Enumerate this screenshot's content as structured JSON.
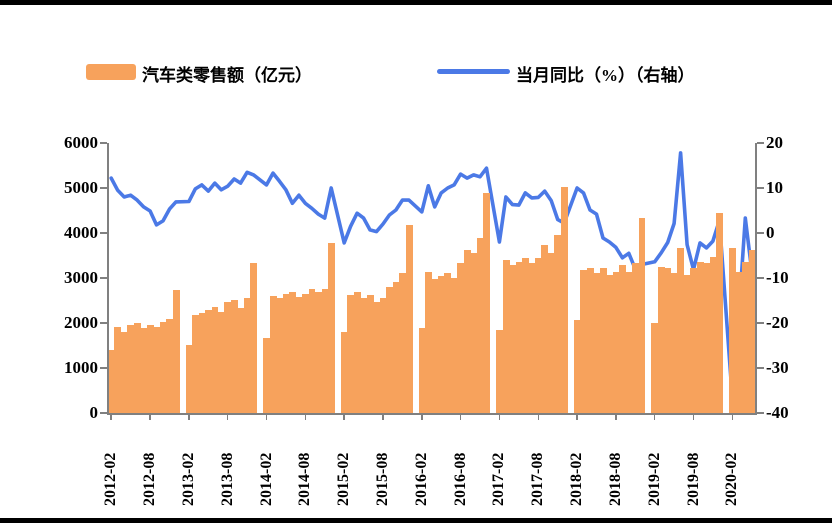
{
  "legend": {
    "bar_label": "汽车类零售额（亿元）",
    "line_label": "当月同比（%）（右轴）"
  },
  "chart_data": {
    "type": "bar+line",
    "title": "",
    "legend_position": "top",
    "grid": false,
    "months": [
      "2012-02",
      "2012-03",
      "2012-04",
      "2012-05",
      "2012-06",
      "2012-07",
      "2012-08",
      "2012-09",
      "2012-10",
      "2012-11",
      "2012-12",
      "2013-01",
      "2013-02",
      "2013-03",
      "2013-04",
      "2013-05",
      "2013-06",
      "2013-07",
      "2013-08",
      "2013-09",
      "2013-10",
      "2013-11",
      "2013-12",
      "2014-01",
      "2014-02",
      "2014-03",
      "2014-04",
      "2014-05",
      "2014-06",
      "2014-07",
      "2014-08",
      "2014-09",
      "2014-10",
      "2014-11",
      "2014-12",
      "2015-01",
      "2015-02",
      "2015-03",
      "2015-04",
      "2015-05",
      "2015-06",
      "2015-07",
      "2015-08",
      "2015-09",
      "2015-10",
      "2015-11",
      "2015-12",
      "2016-01",
      "2016-02",
      "2016-03",
      "2016-04",
      "2016-05",
      "2016-06",
      "2016-07",
      "2016-08",
      "2016-09",
      "2016-10",
      "2016-11",
      "2016-12",
      "2017-01",
      "2017-02",
      "2017-03",
      "2017-04",
      "2017-05",
      "2017-06",
      "2017-07",
      "2017-08",
      "2017-09",
      "2017-10",
      "2017-11",
      "2017-12",
      "2018-01",
      "2018-02",
      "2018-03",
      "2018-04",
      "2018-05",
      "2018-06",
      "2018-07",
      "2018-08",
      "2018-09",
      "2018-10",
      "2018-11",
      "2018-12",
      "2019-01",
      "2019-02",
      "2019-03",
      "2019-04",
      "2019-05",
      "2019-06",
      "2019-07",
      "2019-08",
      "2019-09",
      "2019-10",
      "2019-11",
      "2019-12",
      "2020-01",
      "2020-02",
      "2020-03",
      "2020-04",
      "2020-05"
    ],
    "series": [
      {
        "name": "汽车类零售额（亿元）",
        "type": "bar",
        "axis": "left",
        "values": [
          1400,
          1910,
          1800,
          1960,
          2000,
          1890,
          1960,
          1910,
          2020,
          2090,
          2730,
          null,
          1510,
          2180,
          2220,
          2290,
          2360,
          2240,
          2470,
          2510,
          2330,
          2560,
          3330,
          null,
          1670,
          2600,
          2560,
          2640,
          2700,
          2580,
          2640,
          2760,
          2690,
          2760,
          3780,
          null,
          1800,
          2620,
          2690,
          2560,
          2620,
          2470,
          2560,
          2800,
          2910,
          3110,
          4180,
          null,
          1890,
          3130,
          2980,
          3050,
          3110,
          3000,
          3330,
          3620,
          3550,
          3890,
          4890,
          null,
          1845,
          3400,
          3290,
          3350,
          3450,
          3330,
          3450,
          3730,
          3560,
          3960,
          5020,
          null,
          2070,
          3180,
          3220,
          3110,
          3220,
          3070,
          3130,
          3290,
          3130,
          3330,
          4330,
          null,
          2000,
          3240,
          3220,
          3110,
          3670,
          3070,
          3220,
          3360,
          3330,
          3460,
          4440,
          null,
          3660,
          3140,
          3360,
          3620
        ]
      },
      {
        "name": "当月同比（%）（右轴）",
        "type": "line",
        "axis": "right",
        "values": [
          12.2,
          9.5,
          8.0,
          8.4,
          7.3,
          5.8,
          4.9,
          1.8,
          2.7,
          5.3,
          6.9,
          null,
          7.0,
          9.8,
          10.7,
          9.3,
          11.1,
          9.6,
          10.4,
          12.0,
          11.1,
          13.5,
          12.9,
          null,
          10.7,
          13.3,
          11.5,
          9.6,
          6.6,
          8.4,
          6.6,
          5.5,
          4.2,
          3.3,
          10.0,
          null,
          -2.2,
          1.5,
          4.4,
          3.3,
          0.7,
          0.3,
          2.0,
          4.0,
          5.1,
          7.3,
          7.3,
          null,
          4.7,
          10.5,
          5.8,
          8.9,
          10.0,
          10.7,
          13.1,
          12.2,
          12.9,
          12.5,
          14.4,
          null,
          -2.0,
          8.0,
          6.3,
          6.2,
          8.9,
          7.8,
          7.9,
          9.3,
          7.2,
          3.0,
          2.2,
          null,
          10.0,
          8.9,
          5.1,
          4.2,
          -1.1,
          -2.0,
          -3.2,
          -5.5,
          -4.5,
          -8.0,
          -7.0,
          null,
          -6.4,
          -4.4,
          -2.1,
          2.1,
          17.8,
          -2.6,
          -8.1,
          -2.2,
          -3.3,
          -1.8,
          2.8,
          null,
          -37.0,
          -18.1,
          3.3,
          -8.5
        ]
      }
    ],
    "left_axis": {
      "min": 0,
      "max": 6000,
      "ticks": [
        0,
        1000,
        2000,
        3000,
        4000,
        5000,
        6000
      ]
    },
    "right_axis": {
      "min": -40,
      "max": 20,
      "ticks": [
        20,
        10,
        0,
        -10,
        -20,
        -30,
        -40
      ]
    },
    "x_tick_labels": [
      "2012-02",
      "2012-08",
      "2013-02",
      "2013-08",
      "2014-02",
      "2014-08",
      "2015-02",
      "2015-08",
      "2016-02",
      "2016-08",
      "2017-02",
      "2017-08",
      "2018-02",
      "2018-08",
      "2019-02",
      "2019-08",
      "2020-02"
    ],
    "x_tick_every": 6,
    "colors": {
      "bar": "#F7A25C",
      "line": "#4B79E6",
      "axis": "#808080",
      "rule": "#000000"
    }
  }
}
